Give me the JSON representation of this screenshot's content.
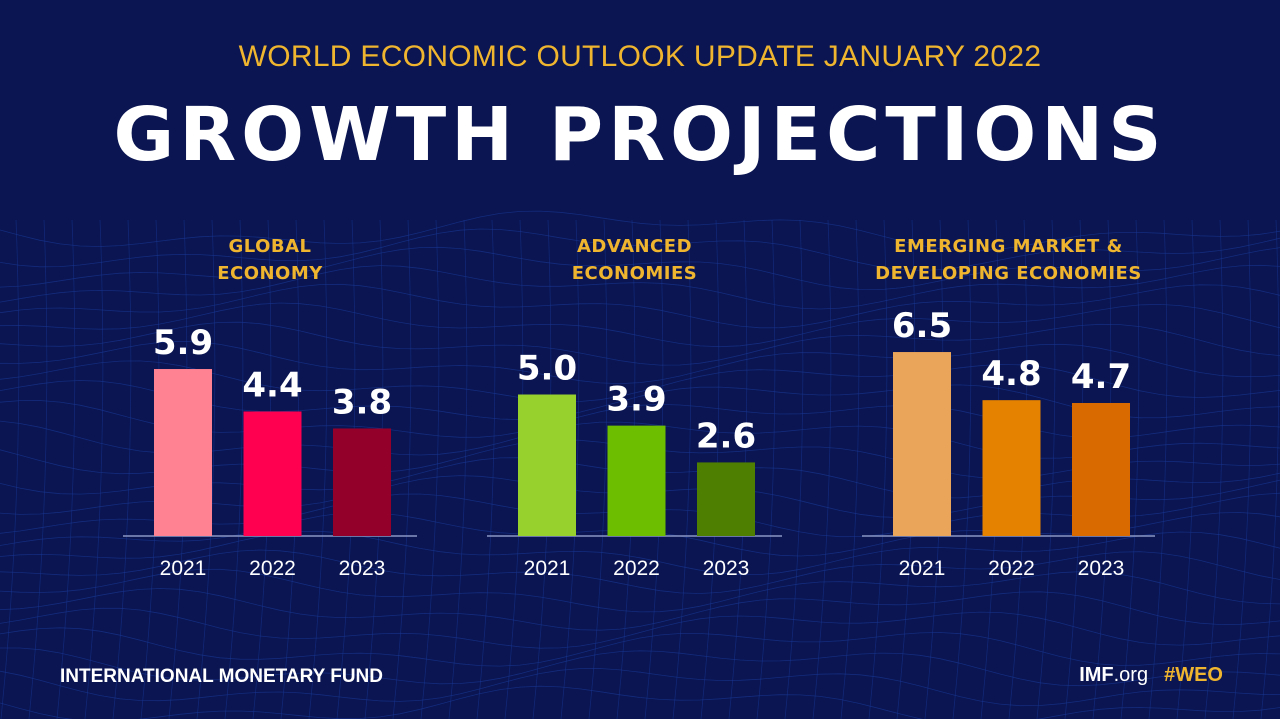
{
  "supertitle": "WORLD ECONOMIC OUTLOOK UPDATE JANUARY 2022",
  "title": "GROWTH PROJECTIONS",
  "colors": {
    "background": "#0a1552",
    "accent": "#f0b52e",
    "text": "#ffffff"
  },
  "chart_data": [
    {
      "type": "bar",
      "title": [
        "GLOBAL",
        "ECONOMY"
      ],
      "categories": [
        "2021",
        "2022",
        "2023"
      ],
      "values": [
        5.9,
        4.4,
        3.8
      ],
      "colors": [
        "#ff8293",
        "#ff0050",
        "#93002a"
      ],
      "data_labels": [
        "5.9",
        "4.4",
        "3.8"
      ],
      "grid": false
    },
    {
      "type": "bar",
      "title": [
        "ADVANCED",
        "ECONOMIES"
      ],
      "categories": [
        "2021",
        "2022",
        "2023"
      ],
      "values": [
        5.0,
        3.9,
        2.6
      ],
      "colors": [
        "#96d12e",
        "#6dbe00",
        "#4f7f00"
      ],
      "data_labels": [
        "5.0",
        "3.9",
        "2.6"
      ],
      "grid": false
    },
    {
      "type": "bar",
      "title": [
        "EMERGING MARKET &",
        "DEVELOPING ECONOMIES"
      ],
      "categories": [
        "2021",
        "2022",
        "2023"
      ],
      "values": [
        6.5,
        4.8,
        4.7
      ],
      "colors": [
        "#eba55a",
        "#e58200",
        "#d96a00"
      ],
      "data_labels": [
        "6.5",
        "4.8",
        "4.7"
      ],
      "grid": false
    }
  ],
  "footer": {
    "org": "INTERNATIONAL MONETARY FUND",
    "site_bold": "IMF",
    "site_rest": ".org",
    "hashtag": "#WEO"
  }
}
